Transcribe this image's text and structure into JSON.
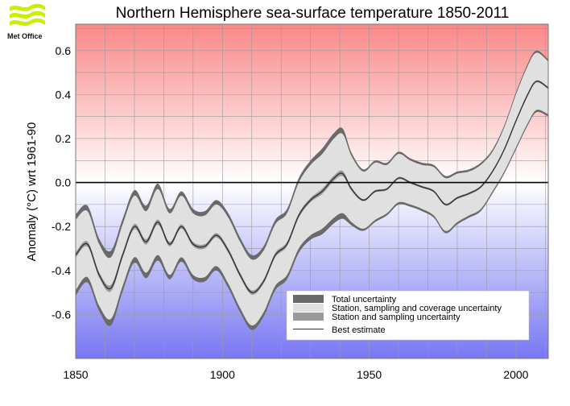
{
  "branding": {
    "logo_text": "Met Office",
    "logo_icon": "met-office-waves-icon"
  },
  "chart_data": {
    "type": "area",
    "title": "Northern Hemisphere sea-surface temperature 1850-2011",
    "ylabel": "Anomaly (°C) wrt 1961-90",
    "xlabel": "",
    "xlim": [
      1850,
      2011
    ],
    "ylim": [
      -0.8,
      0.72
    ],
    "x_ticks": [
      1850,
      1900,
      1950,
      2000
    ],
    "y_ticks": [
      -0.6,
      -0.4,
      -0.2,
      0.0,
      0.2,
      0.4,
      0.6
    ],
    "y_tick_labels": [
      "-0.6",
      "-0.4",
      "-0.2",
      "0.0",
      "0.2",
      "0.4",
      "0.6"
    ],
    "grid": true,
    "legend_position": "bottom-right",
    "colors": {
      "total": "#6a6a6a",
      "coverage": "#e0e0e0",
      "station": "#9a9a9a",
      "best": "#333333",
      "warm": "#f98888",
      "cool": "#7777f3",
      "zero_line": "#000000"
    },
    "legend": [
      {
        "key": "total",
        "label": "Total uncertainty"
      },
      {
        "key": "coverage",
        "label": "Station, sampling and coverage uncertainty"
      },
      {
        "key": "station",
        "label": "Station and sampling uncertainty"
      },
      {
        "key": "best",
        "label": "Best estimate"
      }
    ],
    "x": [
      1850,
      1854,
      1858,
      1862,
      1866,
      1870,
      1874,
      1878,
      1882,
      1886,
      1890,
      1894,
      1898,
      1902,
      1906,
      1910,
      1914,
      1918,
      1922,
      1926,
      1930,
      1934,
      1938,
      1941,
      1944,
      1948,
      1952,
      1956,
      1960,
      1964,
      1968,
      1972,
      1976,
      1980,
      1984,
      1988,
      1992,
      1996,
      2000,
      2004,
      2007,
      2011
    ],
    "best_estimate": [
      -0.33,
      -0.28,
      -0.42,
      -0.48,
      -0.33,
      -0.2,
      -0.27,
      -0.18,
      -0.28,
      -0.2,
      -0.28,
      -0.29,
      -0.24,
      -0.31,
      -0.42,
      -0.5,
      -0.45,
      -0.33,
      -0.28,
      -0.15,
      -0.08,
      -0.04,
      0.02,
      0.04,
      -0.03,
      -0.08,
      -0.04,
      -0.03,
      0.02,
      0.0,
      -0.02,
      -0.04,
      -0.1,
      -0.07,
      -0.05,
      -0.02,
      0.05,
      0.15,
      0.28,
      0.4,
      0.46,
      0.43
    ],
    "coverage_half_width": [
      0.16,
      0.15,
      0.14,
      0.14,
      0.14,
      0.14,
      0.14,
      0.15,
      0.14,
      0.14,
      0.14,
      0.14,
      0.14,
      0.15,
      0.15,
      0.15,
      0.14,
      0.14,
      0.14,
      0.15,
      0.16,
      0.17,
      0.18,
      0.18,
      0.15,
      0.13,
      0.13,
      0.11,
      0.11,
      0.1,
      0.1,
      0.11,
      0.12,
      0.11,
      0.1,
      0.1,
      0.09,
      0.1,
      0.12,
      0.13,
      0.13,
      0.12
    ],
    "total_half_width": [
      0.025,
      0.025,
      0.025,
      0.03,
      0.025,
      0.025,
      0.025,
      0.025,
      0.02,
      0.02,
      0.02,
      0.02,
      0.02,
      0.02,
      0.02,
      0.02,
      0.02,
      0.02,
      0.02,
      0.02,
      0.02,
      0.025,
      0.025,
      0.025,
      0.015,
      0.01,
      0.01,
      0.01,
      0.01,
      0.01,
      0.01,
      0.01,
      0.01,
      0.01,
      0.01,
      0.01,
      0.01,
      0.01,
      0.01,
      0.01,
      0.01,
      0.01
    ],
    "station_half_width": [
      0.012,
      0.012,
      0.012,
      0.015,
      0.012,
      0.012,
      0.012,
      0.012,
      0.01,
      0.01,
      0.01,
      0.01,
      0.01,
      0.01,
      0.01,
      0.01,
      0.01,
      0.01,
      0.01,
      0.01,
      0.01,
      0.012,
      0.012,
      0.012,
      0.008,
      0.005,
      0.005,
      0.005,
      0.005,
      0.005,
      0.005,
      0.005,
      0.005,
      0.005,
      0.005,
      0.005,
      0.005,
      0.005,
      0.005,
      0.005,
      0.005,
      0.005
    ]
  }
}
